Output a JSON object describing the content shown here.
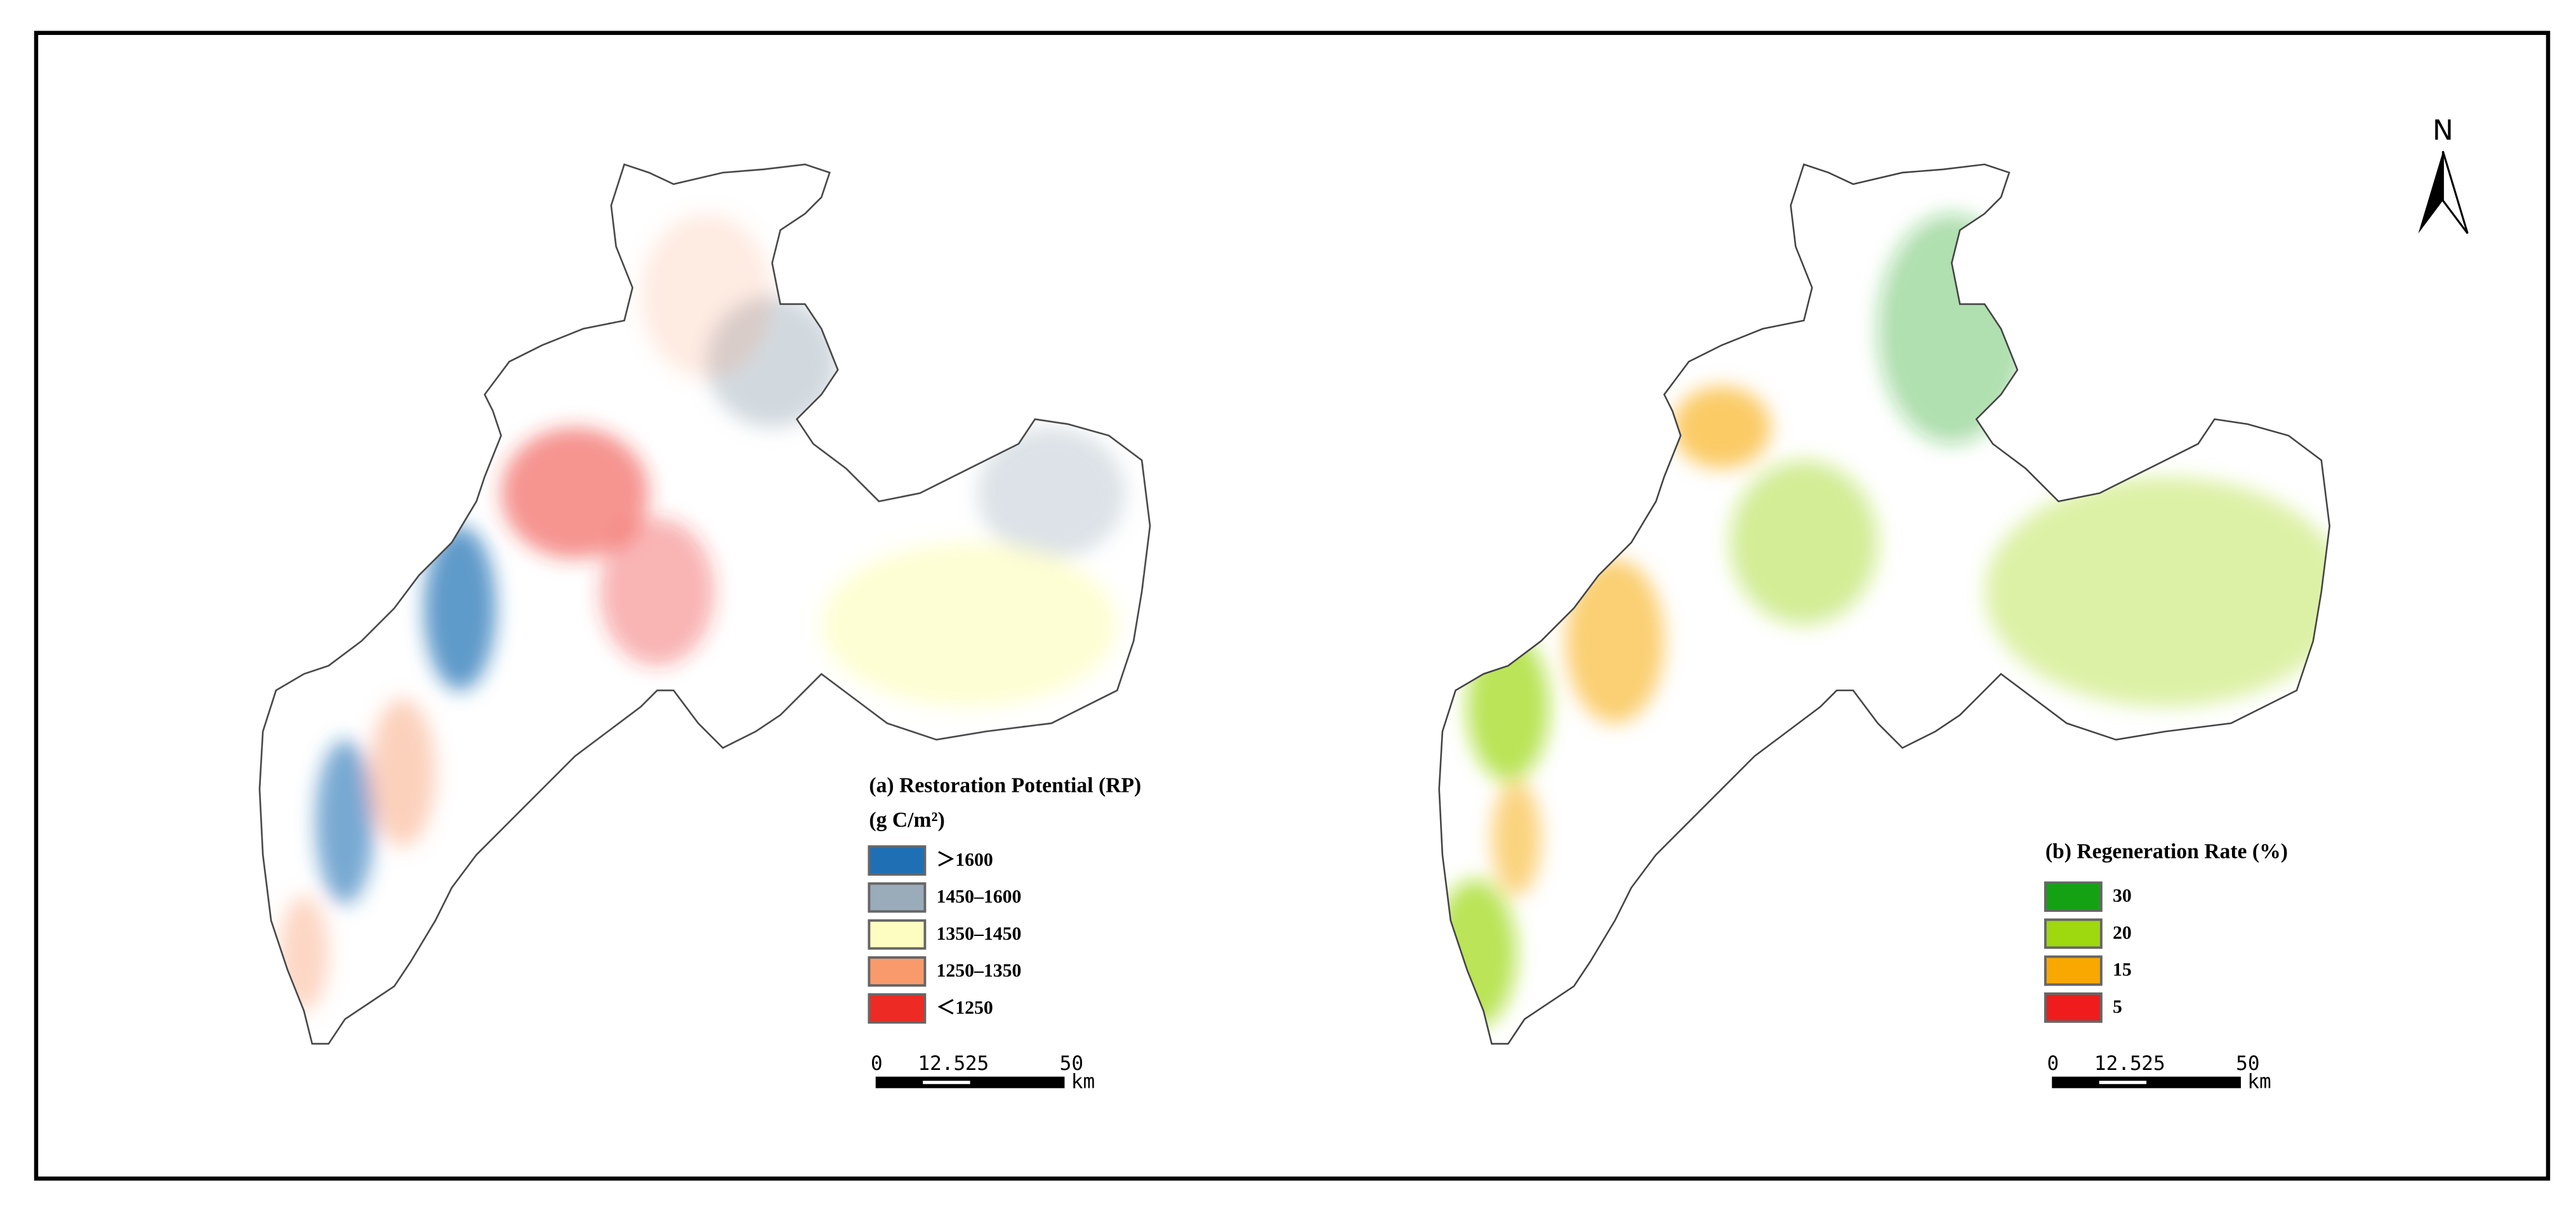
{
  "north": "N",
  "maps": [
    {
      "title": "(a) Restoration Potential (RP)",
      "unit": "(g C/m²)",
      "legend": [
        {
          "label": "＞1600",
          "color": "#1f6fb4"
        },
        {
          "label": "1450–1600",
          "color": "#9aabb9"
        },
        {
          "label": "1350–1450",
          "color": "#fdfdc2"
        },
        {
          "label": "1250–1350",
          "color": "#f99a6c"
        },
        {
          "label": "＜1250",
          "color": "#ee2a24"
        }
      ],
      "scale_ticks": [
        0,
        12.5,
        25,
        50
      ],
      "scale_unit": "km"
    },
    {
      "title": "(b) Regeneration Rate (%)",
      "legend": [
        {
          "label": "30",
          "color": "#14a214"
        },
        {
          "label": "20",
          "color": "#9ed80f"
        },
        {
          "label": "15",
          "color": "#f8a800"
        },
        {
          "label": "5",
          "color": "#ee1c1c"
        }
      ],
      "scale_ticks": [
        0,
        12.5,
        25,
        50
      ],
      "scale_unit": "km"
    }
  ]
}
